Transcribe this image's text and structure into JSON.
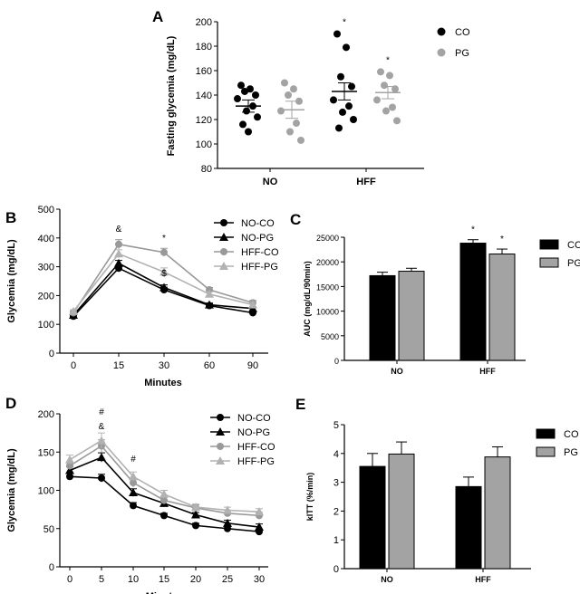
{
  "colors": {
    "CO": "#000000",
    "PG": "#a3a3a3",
    "NO_CO": "#000000",
    "NO_PG": "#000000",
    "HFF_CO": "#999999",
    "HFF_PG": "#b2b2b2"
  },
  "chart_data": [
    {
      "panel": "A",
      "type": "scatter",
      "ylabel": "Fasting glycemia (mg/dL)",
      "ylim": [
        80,
        200
      ],
      "yticks": [
        80,
        100,
        120,
        140,
        160,
        180,
        200
      ],
      "categories": [
        "NO",
        "HFF"
      ],
      "legend": [
        "CO",
        "PG"
      ],
      "series": [
        {
          "name": "CO",
          "groups": [
            {
              "category": "NO",
              "mean": 131,
              "sem": 5,
              "points": [
                148,
                145,
                143,
                140,
                137,
                131,
                127,
                122,
                116,
                110
              ]
            },
            {
              "category": "HFF",
              "mean": 143,
              "sem": 7,
              "points": [
                190,
                179,
                155,
                147,
                136,
                131,
                126,
                120,
                113
              ]
            }
          ]
        },
        {
          "name": "PG",
          "groups": [
            {
              "category": "NO",
              "mean": 128,
              "sem": 7,
              "points": [
                150,
                145,
                140,
                135,
                127,
                117,
                110,
                103
              ]
            },
            {
              "category": "HFF",
              "mean": 142,
              "sem": 5,
              "points": [
                159,
                156,
                148,
                145,
                136,
                130,
                127,
                119
              ]
            }
          ]
        }
      ],
      "annotations": [
        {
          "category": "HFF",
          "series": "CO",
          "text": "*"
        },
        {
          "category": "HFF",
          "series": "PG",
          "text": "*"
        }
      ]
    },
    {
      "panel": "B",
      "type": "line",
      "xlabel": "Minutes",
      "ylabel": "Glycemia (mg/dL)",
      "x": [
        0,
        15,
        30,
        60,
        90
      ],
      "xticks": [
        0,
        15,
        30,
        60,
        90
      ],
      "ylim": [
        0,
        500
      ],
      "yticks": [
        0,
        100,
        200,
        300,
        400,
        500
      ],
      "series": [
        {
          "name": "NO-CO",
          "marker": "circle",
          "values": [
            128,
            295,
            220,
            165,
            140
          ],
          "err": [
            6,
            10,
            9,
            6,
            6
          ]
        },
        {
          "name": "NO-PG",
          "marker": "triangle",
          "values": [
            132,
            312,
            228,
            168,
            155
          ],
          "err": [
            6,
            10,
            9,
            6,
            6
          ]
        },
        {
          "name": "HFF-CO",
          "marker": "circle",
          "values": [
            140,
            378,
            350,
            220,
            175
          ],
          "err": [
            6,
            16,
            14,
            8,
            8
          ]
        },
        {
          "name": "HFF-PG",
          "marker": "triangle",
          "values": [
            145,
            345,
            282,
            205,
            168
          ],
          "err": [
            6,
            14,
            14,
            8,
            8
          ]
        }
      ],
      "annotations": [
        {
          "x": 15,
          "text": "&"
        },
        {
          "x": 30,
          "text": "*"
        },
        {
          "x": 30,
          "text": "$"
        }
      ]
    },
    {
      "panel": "C",
      "type": "bar",
      "ylabel": "AUC (mg/dL/90min)",
      "ylim": [
        0,
        25000
      ],
      "yticks": [
        0,
        5000,
        10000,
        15000,
        20000,
        25000
      ],
      "categories": [
        "NO",
        "HFF"
      ],
      "series": [
        {
          "name": "CO",
          "values": [
            17200,
            23800
          ],
          "err": [
            700,
            700
          ]
        },
        {
          "name": "PG",
          "values": [
            18100,
            21600
          ],
          "err": [
            600,
            1000
          ]
        }
      ],
      "annotations": [
        {
          "category": "HFF",
          "series": "CO",
          "text": "*"
        },
        {
          "category": "HFF",
          "series": "PG",
          "text": "*"
        }
      ]
    },
    {
      "panel": "D",
      "type": "line",
      "xlabel": "Minutes",
      "ylabel": "Glycemia (mg/dL)",
      "x": [
        0,
        5,
        10,
        15,
        20,
        25,
        30
      ],
      "xticks": [
        0,
        5,
        10,
        15,
        20,
        25,
        30
      ],
      "ylim": [
        0,
        200
      ],
      "yticks": [
        0,
        50,
        100,
        150,
        200
      ],
      "series": [
        {
          "name": "NO-CO",
          "marker": "circle",
          "values": [
            118,
            116,
            80,
            67,
            54,
            50,
            46
          ],
          "err": [
            4,
            5,
            4,
            3,
            3,
            3,
            3
          ]
        },
        {
          "name": "NO-PG",
          "marker": "triangle",
          "values": [
            126,
            143,
            97,
            83,
            68,
            57,
            52
          ],
          "err": [
            5,
            6,
            5,
            4,
            3,
            4,
            4
          ]
        },
        {
          "name": "HFF-CO",
          "marker": "circle",
          "values": [
            132,
            158,
            110,
            87,
            77,
            70,
            67
          ],
          "err": [
            5,
            8,
            6,
            5,
            4,
            4,
            4
          ]
        },
        {
          "name": "HFF-PG",
          "marker": "triangle",
          "values": [
            140,
            165,
            118,
            95,
            78,
            74,
            72
          ],
          "err": [
            6,
            10,
            6,
            5,
            4,
            4,
            4
          ]
        }
      ],
      "annotations": [
        {
          "x": 5,
          "text": "#"
        },
        {
          "x": 5,
          "text": "&"
        },
        {
          "x": 10,
          "text": "#"
        }
      ]
    },
    {
      "panel": "E",
      "type": "bar",
      "ylabel": "kITT (%/min)",
      "ylim": [
        0,
        5
      ],
      "yticks": [
        0,
        1,
        2,
        3,
        4,
        5
      ],
      "categories": [
        "NO",
        "HFF"
      ],
      "series": [
        {
          "name": "CO",
          "values": [
            3.55,
            2.85
          ],
          "err": [
            0.45,
            0.33
          ]
        },
        {
          "name": "PG",
          "values": [
            3.98,
            3.88
          ],
          "err": [
            0.42,
            0.35
          ]
        }
      ]
    }
  ]
}
